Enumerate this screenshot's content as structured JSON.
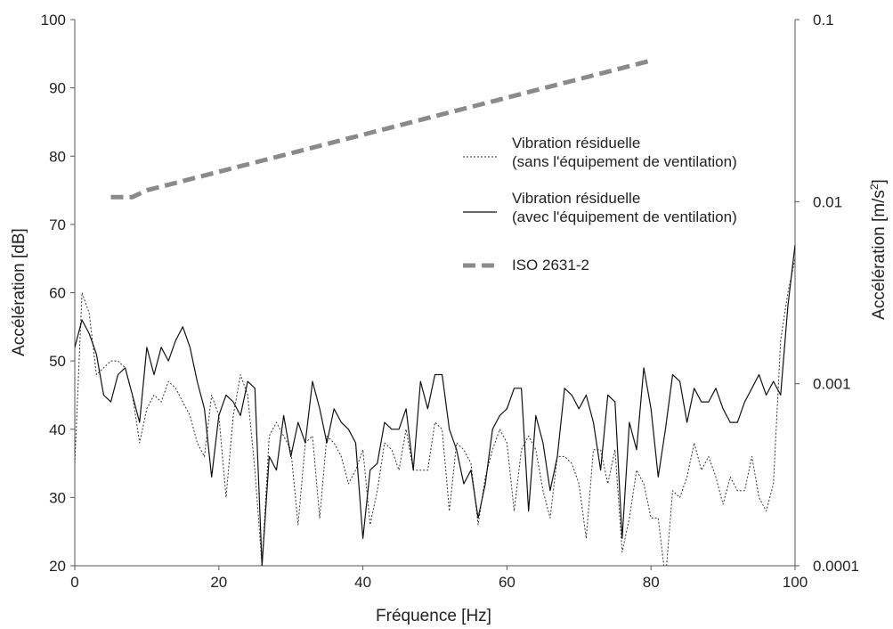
{
  "chart_data": {
    "type": "line",
    "title": "",
    "xlabel": "Fréquence [Hz]",
    "ylabel_left": "Accélération [dB]",
    "ylabel_right_base": "Accélération [m/s",
    "ylabel_right_sup": "2",
    "ylabel_right_end": "]",
    "xlim": [
      0,
      100
    ],
    "ylim_left": [
      20,
      100
    ],
    "ylim_right": [
      0.0001,
      0.1
    ],
    "right_axis_scale": "log",
    "x_ticks": [
      "0",
      "20",
      "40",
      "60",
      "80",
      "100"
    ],
    "y_ticks_left": [
      "20",
      "30",
      "40",
      "50",
      "60",
      "70",
      "80",
      "90",
      "100"
    ],
    "y_ticks_right": [
      "0.0001",
      "0.001",
      "0.01",
      "0.1"
    ],
    "grid": false,
    "legend_position": "top-right",
    "series": [
      {
        "name": "Vibration résiduelle",
        "name_line2": "(sans l'équipement de ventilation)",
        "style": "dotted",
        "color": "#333333",
        "x": [
          0,
          1,
          2,
          3,
          4,
          5,
          6,
          7,
          8,
          9,
          10,
          11,
          12,
          13,
          14,
          15,
          16,
          17,
          18,
          19,
          20,
          21,
          22,
          23,
          24,
          25,
          26,
          27,
          28,
          29,
          30,
          31,
          32,
          33,
          34,
          35,
          36,
          37,
          38,
          39,
          40,
          41,
          42,
          43,
          44,
          45,
          46,
          47,
          48,
          49,
          50,
          51,
          52,
          53,
          54,
          55,
          56,
          57,
          58,
          59,
          60,
          61,
          62,
          63,
          64,
          65,
          66,
          67,
          68,
          69,
          70,
          71,
          72,
          73,
          74,
          75,
          76,
          77,
          78,
          79,
          80,
          81,
          82,
          83,
          84,
          85,
          86,
          87,
          88,
          89,
          90,
          91,
          92,
          93,
          94,
          95,
          96,
          97,
          98,
          99,
          100
        ],
        "y": [
          35,
          60,
          57,
          48,
          49,
          50,
          50,
          49,
          45,
          38,
          43,
          45,
          44,
          47,
          46,
          44,
          42,
          38,
          36,
          45,
          42,
          30,
          42,
          48,
          45,
          34,
          20,
          39,
          41,
          39,
          37,
          26,
          38,
          39,
          27,
          39,
          38,
          36,
          32,
          34,
          37,
          26,
          31,
          38,
          37,
          34,
          40,
          34,
          34,
          34,
          41,
          40,
          28,
          38,
          37,
          35,
          26,
          33,
          37,
          40,
          38,
          28,
          37,
          39,
          37,
          31,
          27,
          36,
          36,
          35,
          32,
          24,
          37,
          37,
          32,
          37,
          22,
          27,
          34,
          32,
          27,
          27,
          18,
          31,
          30,
          33,
          38,
          34,
          36,
          33,
          29,
          33,
          31,
          31,
          36,
          30,
          28,
          32,
          53,
          60,
          65
        ]
      },
      {
        "name": "Vibration résiduelle",
        "name_line2": "(avec l'équipement de ventilation)",
        "style": "solid",
        "color": "#111111",
        "x": [
          0,
          1,
          2,
          3,
          4,
          5,
          6,
          7,
          8,
          9,
          10,
          11,
          12,
          13,
          14,
          15,
          16,
          17,
          18,
          19,
          20,
          21,
          22,
          23,
          24,
          25,
          26,
          27,
          28,
          29,
          30,
          31,
          32,
          33,
          34,
          35,
          36,
          37,
          38,
          39,
          40,
          41,
          42,
          43,
          44,
          45,
          46,
          47,
          48,
          49,
          50,
          51,
          52,
          53,
          54,
          55,
          56,
          57,
          58,
          59,
          60,
          61,
          62,
          63,
          64,
          65,
          66,
          67,
          68,
          69,
          70,
          71,
          72,
          73,
          74,
          75,
          76,
          77,
          78,
          79,
          80,
          81,
          82,
          83,
          84,
          85,
          86,
          87,
          88,
          89,
          90,
          91,
          92,
          93,
          94,
          95,
          96,
          97,
          98,
          99,
          100
        ],
        "y": [
          52,
          56,
          54,
          51,
          45,
          44,
          48,
          49,
          45,
          41,
          52,
          48,
          52,
          50,
          53,
          55,
          52,
          47,
          43,
          33,
          42,
          45,
          44,
          42,
          47,
          46,
          20,
          36,
          34,
          42,
          36,
          41,
          38,
          47,
          43,
          38,
          43,
          41,
          40,
          38,
          24,
          34,
          35,
          41,
          40,
          40,
          43,
          34,
          47,
          43,
          48,
          48,
          40,
          37,
          32,
          34,
          27,
          32,
          40,
          42,
          43,
          46,
          46,
          28,
          42,
          38,
          31,
          36,
          46,
          45,
          43,
          45,
          41,
          34,
          45,
          44,
          24,
          41,
          37,
          49,
          43,
          33,
          40,
          48,
          47,
          41,
          46,
          44,
          44,
          46,
          43,
          41,
          41,
          44,
          46,
          48,
          45,
          47,
          45,
          58,
          67
        ]
      },
      {
        "name": "ISO 2631-2",
        "style": "dashed",
        "color": "#8a8a8a",
        "x": [
          5,
          8,
          10,
          80
        ],
        "y": [
          74,
          74,
          75,
          94
        ]
      }
    ]
  }
}
